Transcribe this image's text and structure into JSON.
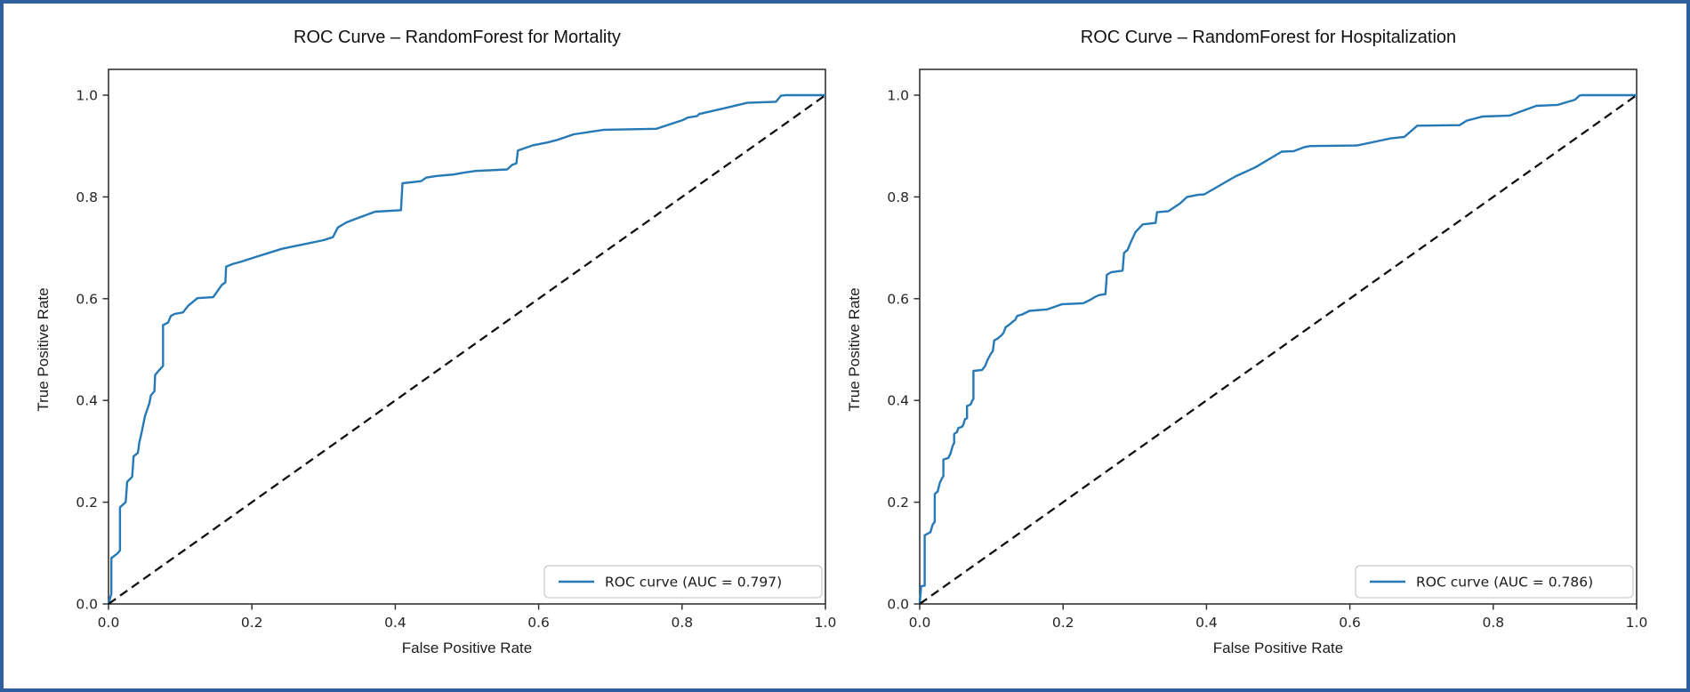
{
  "page": {
    "background": "#ffffff",
    "frame_border_color": "#2f5f9e"
  },
  "chart_data": [
    {
      "type": "line",
      "title": "ROC Curve – RandomForest for Mortality",
      "xlabel": "False Positive Rate",
      "ylabel": "True Positive Rate",
      "xlim": [
        0.0,
        1.0
      ],
      "ylim": [
        0.0,
        1.05
      ],
      "grid": false,
      "legend_position": "lower right",
      "x_ticks": [
        "0.0",
        "0.2",
        "0.4",
        "0.6",
        "0.8",
        "1.0"
      ],
      "y_ticks": [
        "0.0",
        "0.2",
        "0.4",
        "0.6",
        "0.8",
        "1.0"
      ],
      "auc": 0.797,
      "series": [
        {
          "name": "ROC curve (AUC = 0.797)",
          "role": "roc",
          "color": "#2579b5",
          "in_legend": true,
          "points": [
            [
              0,
              0
            ],
            [
              0.004,
              0.02
            ],
            [
              0.004,
              0.09
            ],
            [
              0.013,
              0.1
            ],
            [
              0.016,
              0.105
            ],
            [
              0.016,
              0.19
            ],
            [
              0.024,
              0.2
            ],
            [
              0.026,
              0.24
            ],
            [
              0.033,
              0.25
            ],
            [
              0.035,
              0.29
            ],
            [
              0.041,
              0.297
            ],
            [
              0.043,
              0.318
            ],
            [
              0.046,
              0.336
            ],
            [
              0.051,
              0.37
            ],
            [
              0.057,
              0.394
            ],
            [
              0.059,
              0.41
            ],
            [
              0.064,
              0.418
            ],
            [
              0.065,
              0.45
            ],
            [
              0.071,
              0.46
            ],
            [
              0.076,
              0.468
            ],
            [
              0.076,
              0.548
            ],
            [
              0.083,
              0.553
            ],
            [
              0.087,
              0.566
            ],
            [
              0.092,
              0.57
            ],
            [
              0.104,
              0.573
            ],
            [
              0.111,
              0.586
            ],
            [
              0.118,
              0.594
            ],
            [
              0.124,
              0.601
            ],
            [
              0.146,
              0.603
            ],
            [
              0.158,
              0.627
            ],
            [
              0.163,
              0.632
            ],
            [
              0.164,
              0.663
            ],
            [
              0.173,
              0.668
            ],
            [
              0.186,
              0.673
            ],
            [
              0.203,
              0.681
            ],
            [
              0.242,
              0.698
            ],
            [
              0.269,
              0.706
            ],
            [
              0.3,
              0.715
            ],
            [
              0.313,
              0.721
            ],
            [
              0.32,
              0.74
            ],
            [
              0.332,
              0.75
            ],
            [
              0.347,
              0.758
            ],
            [
              0.372,
              0.771
            ],
            [
              0.408,
              0.774
            ],
            [
              0.41,
              0.827
            ],
            [
              0.436,
              0.831
            ],
            [
              0.443,
              0.838
            ],
            [
              0.457,
              0.841
            ],
            [
              0.481,
              0.844
            ],
            [
              0.497,
              0.848
            ],
            [
              0.512,
              0.851
            ],
            [
              0.556,
              0.854
            ],
            [
              0.563,
              0.863
            ],
            [
              0.569,
              0.866
            ],
            [
              0.571,
              0.891
            ],
            [
              0.591,
              0.901
            ],
            [
              0.612,
              0.907
            ],
            [
              0.626,
              0.912
            ],
            [
              0.649,
              0.923
            ],
            [
              0.691,
              0.932
            ],
            [
              0.764,
              0.934
            ],
            [
              0.801,
              0.951
            ],
            [
              0.808,
              0.956
            ],
            [
              0.821,
              0.959
            ],
            [
              0.824,
              0.963
            ],
            [
              0.861,
              0.975
            ],
            [
              0.891,
              0.985
            ],
            [
              0.931,
              0.987
            ],
            [
              0.938,
              0.999
            ],
            [
              0.945,
              1.0
            ],
            [
              1.0,
              1.0
            ]
          ]
        },
        {
          "name": "chance-diagonal",
          "role": "diagonal",
          "color": "#111111",
          "dashed": true,
          "in_legend": false,
          "points": [
            [
              0,
              0
            ],
            [
              1,
              1
            ]
          ]
        }
      ]
    },
    {
      "type": "line",
      "title": "ROC Curve – RandomForest for Hospitalization",
      "xlabel": "False Positive Rate",
      "ylabel": "True Positive Rate",
      "xlim": [
        0.0,
        1.0
      ],
      "ylim": [
        0.0,
        1.05
      ],
      "grid": false,
      "legend_position": "lower right",
      "x_ticks": [
        "0.0",
        "0.2",
        "0.4",
        "0.6",
        "0.8",
        "1.0"
      ],
      "y_ticks": [
        "0.0",
        "0.2",
        "0.4",
        "0.6",
        "0.8",
        "1.0"
      ],
      "auc": 0.786,
      "series": [
        {
          "name": "ROC curve (AUC = 0.786)",
          "role": "roc",
          "color": "#2579b5",
          "in_legend": true,
          "points": [
            [
              0,
              0
            ],
            [
              0.002,
              0.035
            ],
            [
              0.007,
              0.036
            ],
            [
              0.007,
              0.135
            ],
            [
              0.015,
              0.141
            ],
            [
              0.018,
              0.156
            ],
            [
              0.021,
              0.161
            ],
            [
              0.021,
              0.216
            ],
            [
              0.025,
              0.221
            ],
            [
              0.028,
              0.238
            ],
            [
              0.031,
              0.247
            ],
            [
              0.033,
              0.251
            ],
            [
              0.033,
              0.284
            ],
            [
              0.04,
              0.287
            ],
            [
              0.043,
              0.296
            ],
            [
              0.046,
              0.311
            ],
            [
              0.048,
              0.316
            ],
            [
              0.048,
              0.334
            ],
            [
              0.052,
              0.338
            ],
            [
              0.054,
              0.346
            ],
            [
              0.059,
              0.348
            ],
            [
              0.061,
              0.353
            ],
            [
              0.063,
              0.363
            ],
            [
              0.066,
              0.365
            ],
            [
              0.066,
              0.389
            ],
            [
              0.071,
              0.392
            ],
            [
              0.073,
              0.399
            ],
            [
              0.075,
              0.403
            ],
            [
              0.075,
              0.458
            ],
            [
              0.087,
              0.46
            ],
            [
              0.091,
              0.467
            ],
            [
              0.095,
              0.481
            ],
            [
              0.099,
              0.491
            ],
            [
              0.102,
              0.497
            ],
            [
              0.104,
              0.518
            ],
            [
              0.109,
              0.522
            ],
            [
              0.114,
              0.528
            ],
            [
              0.117,
              0.533
            ],
            [
              0.12,
              0.544
            ],
            [
              0.125,
              0.549
            ],
            [
              0.129,
              0.554
            ],
            [
              0.133,
              0.558
            ],
            [
              0.136,
              0.566
            ],
            [
              0.143,
              0.569
            ],
            [
              0.153,
              0.576
            ],
            [
              0.178,
              0.579
            ],
            [
              0.188,
              0.584
            ],
            [
              0.198,
              0.589
            ],
            [
              0.228,
              0.591
            ],
            [
              0.237,
              0.597
            ],
            [
              0.244,
              0.603
            ],
            [
              0.25,
              0.607
            ],
            [
              0.259,
              0.609
            ],
            [
              0.261,
              0.647
            ],
            [
              0.267,
              0.652
            ],
            [
              0.283,
              0.655
            ],
            [
              0.285,
              0.69
            ],
            [
              0.29,
              0.696
            ],
            [
              0.295,
              0.713
            ],
            [
              0.301,
              0.731
            ],
            [
              0.311,
              0.746
            ],
            [
              0.329,
              0.749
            ],
            [
              0.331,
              0.77
            ],
            [
              0.347,
              0.772
            ],
            [
              0.363,
              0.787
            ],
            [
              0.373,
              0.8
            ],
            [
              0.388,
              0.804
            ],
            [
              0.397,
              0.805
            ],
            [
              0.44,
              0.84
            ],
            [
              0.468,
              0.858
            ],
            [
              0.505,
              0.889
            ],
            [
              0.522,
              0.89
            ],
            [
              0.537,
              0.898
            ],
            [
              0.545,
              0.9
            ],
            [
              0.61,
              0.901
            ],
            [
              0.64,
              0.91
            ],
            [
              0.657,
              0.915
            ],
            [
              0.676,
              0.918
            ],
            [
              0.694,
              0.94
            ],
            [
              0.753,
              0.941
            ],
            [
              0.763,
              0.95
            ],
            [
              0.785,
              0.958
            ],
            [
              0.823,
              0.96
            ],
            [
              0.86,
              0.979
            ],
            [
              0.89,
              0.981
            ],
            [
              0.914,
              0.991
            ],
            [
              0.92,
              0.999
            ],
            [
              0.923,
              1.0
            ],
            [
              1.0,
              1.0
            ]
          ]
        },
        {
          "name": "chance-diagonal",
          "role": "diagonal",
          "color": "#111111",
          "dashed": true,
          "in_legend": false,
          "points": [
            [
              0,
              0
            ],
            [
              1,
              1
            ]
          ]
        }
      ]
    }
  ]
}
